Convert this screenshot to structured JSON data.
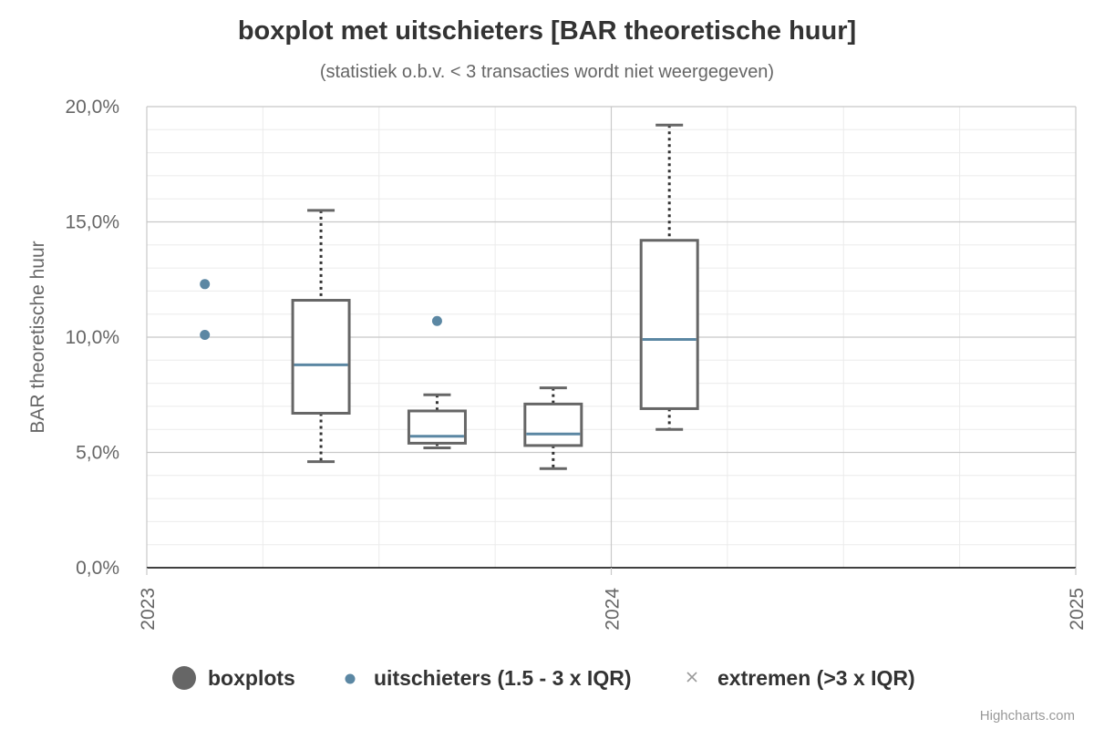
{
  "chart_data": {
    "type": "boxplot",
    "title": "boxplot met uitschieters [BAR theoretische huur]",
    "subtitle": "(statistiek o.b.v. < 3 transacties wordt niet weergegeven)",
    "ylabel": "BAR theoretische huur",
    "xlabel": "",
    "ylim": [
      0,
      20
    ],
    "yticks": [
      "0,0%",
      "5,0%",
      "10,0%",
      "15,0%",
      "20,0%"
    ],
    "xlim": [
      2023.0,
      2025.0
    ],
    "xticks": [
      "2023",
      "2024",
      "2025"
    ],
    "grid": true,
    "legend_position": "bottom-center",
    "series": [
      {
        "name": "boxplots",
        "color": "#666666",
        "median_color": "#5b87a3",
        "boxes": [
          {
            "x": 2023.375,
            "low": 4.6,
            "q1": 6.7,
            "median": 8.8,
            "q3": 11.6,
            "high": 15.5
          },
          {
            "x": 2023.625,
            "low": 5.2,
            "q1": 5.4,
            "median": 5.7,
            "q3": 6.8,
            "high": 7.5
          },
          {
            "x": 2023.875,
            "low": 4.3,
            "q1": 5.3,
            "median": 5.8,
            "q3": 7.1,
            "high": 7.8
          },
          {
            "x": 2024.125,
            "low": 6.0,
            "q1": 6.9,
            "median": 9.9,
            "q3": 14.2,
            "high": 19.2
          }
        ]
      },
      {
        "name": "uitschieters (1.5 - 3 x IQR)",
        "color": "#5b87a3",
        "points": [
          {
            "x": 2023.125,
            "y": 12.3
          },
          {
            "x": 2023.125,
            "y": 10.1
          },
          {
            "x": 2023.625,
            "y": 10.7
          }
        ]
      },
      {
        "name": "extremen (>3 x IQR)",
        "color": "#999999",
        "points": []
      }
    ]
  },
  "credits": "Highcharts.com"
}
